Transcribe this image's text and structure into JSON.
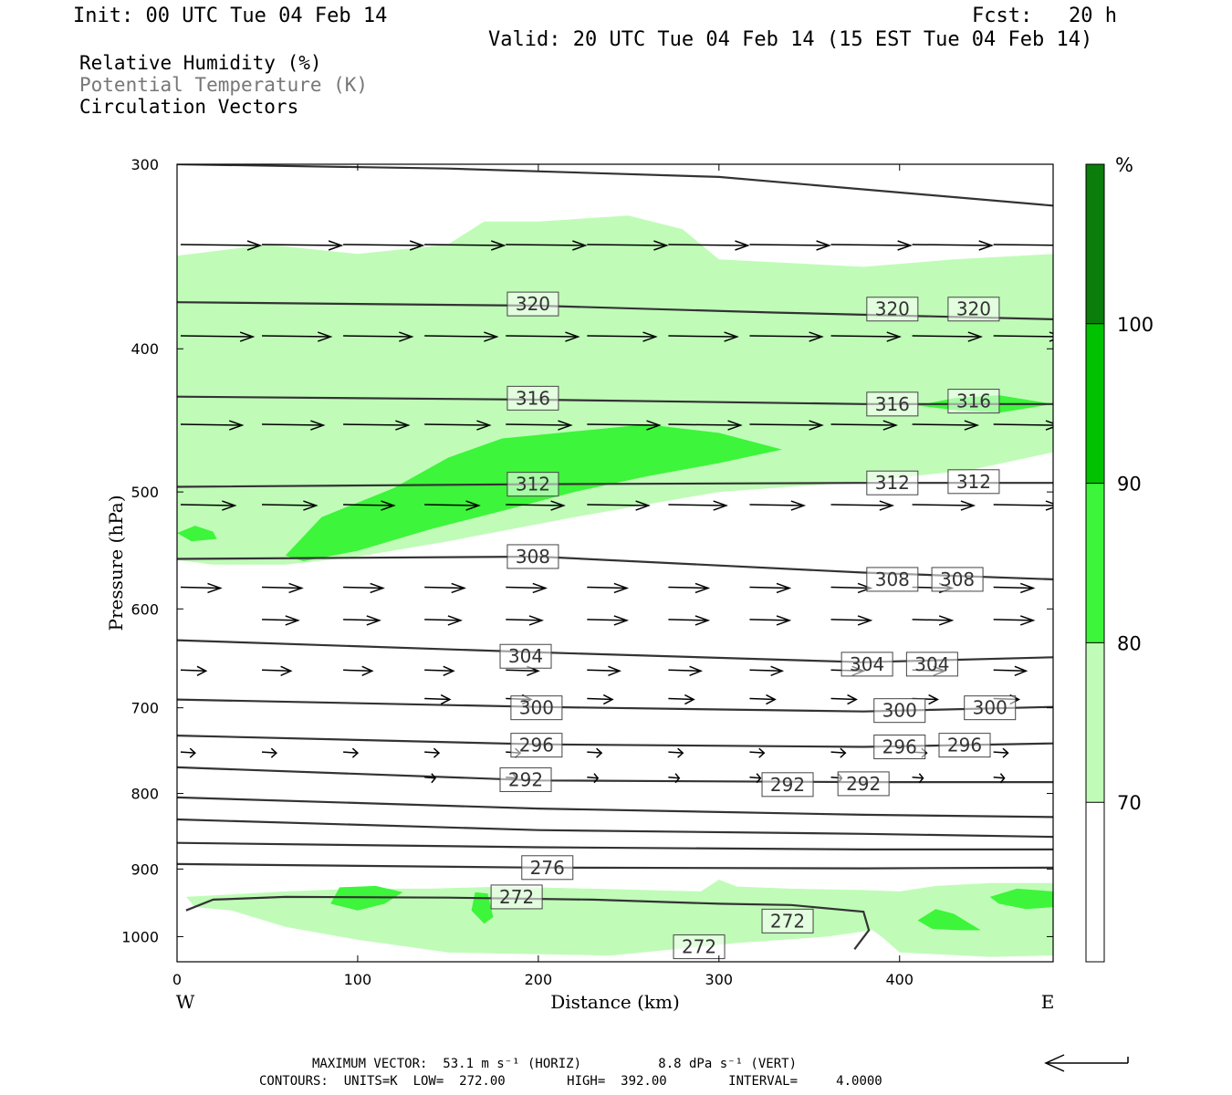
{
  "header": {
    "init": "Init: 00 UTC Tue 04 Feb 14",
    "fcst": "Fcst:   20 h",
    "valid": "Valid: 20 UTC Tue 04 Feb 14 (15 EST Tue 04 Feb 14)"
  },
  "legend": {
    "line1": "Relative Humidity (%)",
    "line2": "Potential Temperature (K)",
    "line3": "Circulation Vectors"
  },
  "footer": {
    "max_vector_line": "MAXIMUM VECTOR:  53.1 m s⁻¹ (HORIZ)          8.8 dPa s⁻¹ (VERT)",
    "contours_line": "CONTOURS:  UNITS=K  LOW=  272.00        HIGH=  392.00        INTERVAL=     4.0000"
  },
  "colors": {
    "rh_70_80": "#c0fcb8",
    "rh_80_90": "#3df53a",
    "rh_90_100": "#00c200",
    "rh_100": "#0a7d0a",
    "contour": "#333333"
  },
  "chart_data": {
    "type": "cross-section",
    "title": "",
    "xlabel": "Distance (km)",
    "ylabel": "Pressure (hPa)",
    "xlim": [
      0,
      485
    ],
    "ylim": [
      1040,
      300
    ],
    "y_scale": "log",
    "x_ticks": [
      0,
      100,
      200,
      300,
      400
    ],
    "y_ticks": [
      300,
      400,
      500,
      600,
      700,
      800,
      900,
      1000
    ],
    "x_end_labels": {
      "left": "W",
      "right": "E"
    },
    "colorbar": {
      "unit": "%",
      "levels": [
        70,
        80,
        90,
        100
      ]
    },
    "theta_contours": [
      {
        "level": null,
        "points": [
          [
            0,
            300
          ],
          [
            150,
            302
          ],
          [
            300,
            306
          ],
          [
            485,
            320
          ]
        ]
      },
      {
        "level": 320,
        "points": [
          [
            0,
            372
          ],
          [
            200,
            374
          ],
          [
            330,
            378
          ],
          [
            485,
            382
          ]
        ],
        "labels": [
          [
            197,
            373
          ],
          [
            396,
            376
          ],
          [
            441,
            376
          ]
        ]
      },
      {
        "level": 316,
        "points": [
          [
            0,
            431
          ],
          [
            200,
            433
          ],
          [
            380,
            436
          ],
          [
            485,
            436
          ]
        ],
        "labels": [
          [
            197,
            432
          ],
          [
            396,
            436
          ],
          [
            441,
            434
          ]
        ]
      },
      {
        "level": 312,
        "points": [
          [
            0,
            496
          ],
          [
            200,
            494
          ],
          [
            380,
            493
          ],
          [
            485,
            493
          ]
        ],
        "labels": [
          [
            197,
            494
          ],
          [
            396,
            493
          ],
          [
            441,
            492
          ]
        ]
      },
      {
        "level": 308,
        "points": [
          [
            0,
            555
          ],
          [
            200,
            553
          ],
          [
            380,
            567
          ],
          [
            485,
            573
          ]
        ],
        "labels": [
          [
            197,
            553
          ],
          [
            396,
            573
          ],
          [
            432,
            573
          ]
        ]
      },
      {
        "level": 304,
        "points": [
          [
            0,
            630
          ],
          [
            200,
            642
          ],
          [
            380,
            652
          ],
          [
            485,
            647
          ]
        ],
        "labels": [
          [
            193,
            646
          ],
          [
            382,
            654
          ],
          [
            418,
            654
          ]
        ]
      },
      {
        "level": 300,
        "points": [
          [
            0,
            691
          ],
          [
            200,
            699
          ],
          [
            380,
            704
          ],
          [
            485,
            699
          ]
        ],
        "labels": [
          [
            199,
            700
          ],
          [
            400,
            703
          ],
          [
            450,
            700
          ]
        ]
      },
      {
        "level": 296,
        "points": [
          [
            0,
            731
          ],
          [
            200,
            741
          ],
          [
            380,
            744
          ],
          [
            485,
            740
          ]
        ],
        "labels": [
          [
            199,
            742
          ],
          [
            400,
            744
          ],
          [
            436,
            742
          ]
        ]
      },
      {
        "level": 292,
        "points": [
          [
            0,
            768
          ],
          [
            200,
            784
          ],
          [
            380,
            786
          ],
          [
            485,
            786
          ]
        ],
        "labels": [
          [
            193,
            783
          ],
          [
            338,
            789
          ],
          [
            380,
            788
          ]
        ]
      },
      {
        "level": null,
        "points": [
          [
            0,
            805
          ],
          [
            200,
            819
          ],
          [
            380,
            827
          ],
          [
            485,
            830
          ]
        ]
      },
      {
        "level": null,
        "points": [
          [
            0,
            833
          ],
          [
            200,
            847
          ],
          [
            380,
            852
          ],
          [
            485,
            856
          ]
        ]
      },
      {
        "level": null,
        "points": [
          [
            0,
            864
          ],
          [
            200,
            870
          ],
          [
            380,
            873
          ],
          [
            485,
            873
          ]
        ]
      },
      {
        "level": 276,
        "points": [
          [
            0,
            893
          ],
          [
            200,
            898
          ],
          [
            380,
            899
          ],
          [
            485,
            898
          ]
        ],
        "labels": [
          [
            205,
            898
          ]
        ]
      },
      {
        "level": 272,
        "points": [
          [
            5,
            960
          ],
          [
            20,
            944
          ],
          [
            60,
            940
          ],
          [
            150,
            941
          ],
          [
            230,
            944
          ],
          [
            300,
            950
          ],
          [
            340,
            952
          ],
          [
            380,
            962
          ],
          [
            383,
            990
          ],
          [
            375,
            1020
          ]
        ],
        "labels": [
          [
            188,
            940
          ],
          [
            338,
            976
          ],
          [
            289,
            1016
          ]
        ]
      }
    ],
    "rh_regions": [
      {
        "level": 70,
        "polygon": [
          [
            0,
            346
          ],
          [
            50,
            340
          ],
          [
            100,
            345
          ],
          [
            150,
            340
          ],
          [
            170,
            328
          ],
          [
            200,
            328
          ],
          [
            250,
            325
          ],
          [
            280,
            332
          ],
          [
            300,
            348
          ],
          [
            380,
            352
          ],
          [
            430,
            348
          ],
          [
            485,
            345
          ],
          [
            485,
            470
          ],
          [
            440,
            483
          ],
          [
            380,
            492
          ],
          [
            300,
            500
          ],
          [
            220,
            520
          ],
          [
            150,
            540
          ],
          [
            100,
            553
          ],
          [
            60,
            560
          ],
          [
            20,
            560
          ],
          [
            0,
            556
          ]
        ]
      },
      {
        "level": 80,
        "polygon": [
          [
            60,
            552
          ],
          [
            80,
            520
          ],
          [
            120,
            497
          ],
          [
            150,
            474
          ],
          [
            180,
            460
          ],
          [
            220,
            455
          ],
          [
            260,
            450
          ],
          [
            300,
            456
          ],
          [
            335,
            468
          ],
          [
            300,
            478
          ],
          [
            260,
            488
          ],
          [
            220,
            500
          ],
          [
            180,
            515
          ],
          [
            140,
            530
          ],
          [
            100,
            548
          ],
          [
            70,
            557
          ]
        ]
      },
      {
        "level": 80,
        "polygon": [
          [
            410,
            437
          ],
          [
            430,
            432
          ],
          [
            455,
            430
          ],
          [
            485,
            436
          ],
          [
            455,
            442
          ],
          [
            430,
            440
          ]
        ]
      },
      {
        "level": 80,
        "polygon": [
          [
            0,
            533
          ],
          [
            10,
            527
          ],
          [
            20,
            532
          ],
          [
            22,
            538
          ],
          [
            8,
            540
          ]
        ]
      },
      {
        "level": 70,
        "polygon": [
          [
            5,
            940
          ],
          [
            60,
            932
          ],
          [
            100,
            928
          ],
          [
            140,
            928
          ],
          [
            180,
            925
          ],
          [
            230,
            928
          ],
          [
            290,
            932
          ],
          [
            300,
            915
          ],
          [
            310,
            925
          ],
          [
            340,
            928
          ],
          [
            380,
            930
          ],
          [
            400,
            932
          ],
          [
            420,
            924
          ],
          [
            450,
            920
          ],
          [
            485,
            920
          ],
          [
            485,
            1030
          ],
          [
            450,
            1032
          ],
          [
            400,
            1025
          ],
          [
            390,
            1000
          ],
          [
            385,
            990
          ],
          [
            360,
            1000
          ],
          [
            310,
            1010
          ],
          [
            240,
            1030
          ],
          [
            150,
            1025
          ],
          [
            100,
            1005
          ],
          [
            60,
            985
          ],
          [
            30,
            960
          ],
          [
            10,
            955
          ]
        ]
      },
      {
        "level": 80,
        "polygon": [
          [
            90,
            926
          ],
          [
            110,
            924
          ],
          [
            125,
            933
          ],
          [
            115,
            950
          ],
          [
            100,
            960
          ],
          [
            85,
            950
          ]
        ]
      },
      {
        "level": 80,
        "polygon": [
          [
            165,
            933
          ],
          [
            172,
            935
          ],
          [
            175,
            970
          ],
          [
            170,
            980
          ],
          [
            163,
            960
          ]
        ]
      },
      {
        "level": 80,
        "polygon": [
          [
            410,
            975
          ],
          [
            420,
            958
          ],
          [
            430,
            965
          ],
          [
            445,
            990
          ],
          [
            432,
            990
          ],
          [
            418,
            988
          ]
        ]
      },
      {
        "level": 80,
        "polygon": [
          [
            450,
            940
          ],
          [
            465,
            928
          ],
          [
            485,
            932
          ],
          [
            485,
            955
          ],
          [
            470,
            958
          ],
          [
            455,
            950
          ]
        ]
      }
    ],
    "vectors": {
      "max_horiz": "53.1 m s⁻¹",
      "max_vert": "8.8 dPa s⁻¹",
      "rows": [
        {
          "p": 340,
          "x": [
            0,
            45,
            90,
            135,
            180,
            225,
            270,
            315,
            360,
            405,
            450
          ],
          "len_km": [
            44,
            44,
            44,
            44,
            44,
            44,
            44,
            44,
            44,
            44,
            44
          ]
        },
        {
          "p": 392,
          "x": [
            0,
            45,
            90,
            135,
            180,
            225,
            270,
            315,
            360,
            405,
            450
          ],
          "len_km": [
            40,
            38,
            38,
            40,
            40,
            38,
            38,
            40,
            38,
            38,
            38
          ]
        },
        {
          "p": 450,
          "x": [
            0,
            45,
            90,
            135,
            180,
            225,
            270,
            315,
            360,
            405,
            450
          ],
          "len_km": [
            34,
            34,
            36,
            36,
            36,
            40,
            40,
            40,
            36,
            36,
            36
          ]
        },
        {
          "p": 510,
          "x": [
            0,
            45,
            90,
            135,
            180,
            225,
            270,
            315,
            360,
            405,
            450
          ],
          "len_km": [
            30,
            30,
            28,
            30,
            32,
            34,
            32,
            30,
            34,
            34,
            36
          ]
        },
        {
          "p": 580,
          "x": [
            0,
            45,
            90,
            135,
            180,
            225,
            270,
            315,
            360,
            405,
            450
          ],
          "len_km": [
            22,
            22,
            22,
            22,
            22,
            22,
            22,
            22,
            22,
            22,
            22
          ]
        },
        {
          "p": 610,
          "x": [
            45,
            90,
            135,
            180,
            225,
            270,
            315,
            360,
            405,
            450
          ],
          "len_km": [
            20,
            20,
            20,
            20,
            22,
            22,
            22,
            22,
            22,
            22
          ]
        },
        {
          "p": 660,
          "x": [
            0,
            45,
            90,
            135,
            180,
            225,
            270,
            315,
            360,
            405,
            450
          ],
          "len_km": [
            14,
            16,
            16,
            16,
            18,
            18,
            18,
            18,
            18,
            18,
            18
          ]
        },
        {
          "p": 690,
          "x": [
            135,
            180,
            225,
            270,
            315,
            360,
            405,
            450
          ],
          "len_km": [
            14,
            14,
            14,
            14,
            14,
            14,
            14,
            14
          ]
        },
        {
          "p": 750,
          "x": [
            0,
            45,
            90,
            135,
            180,
            225,
            270,
            315,
            360,
            405,
            450
          ],
          "len_km": [
            8,
            8,
            8,
            8,
            8,
            8,
            8,
            8,
            8,
            8,
            8
          ]
        },
        {
          "p": 780,
          "x": [
            135,
            180,
            225,
            270,
            315,
            360,
            405,
            450
          ],
          "len_km": [
            6,
            6,
            6,
            6,
            6,
            6,
            6,
            6
          ]
        }
      ]
    }
  }
}
